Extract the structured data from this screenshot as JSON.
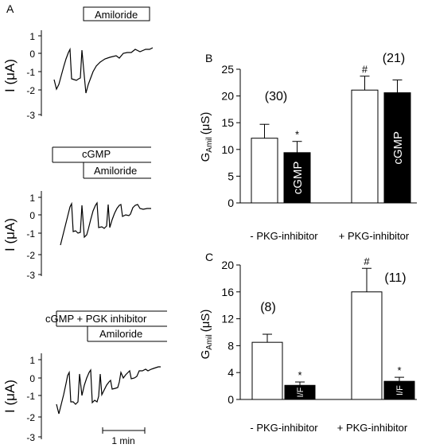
{
  "panels": {
    "A": "A",
    "B": "B",
    "C": "C"
  },
  "traces": [
    {
      "bars": [
        "Amiloride"
      ],
      "ylabel": "I (μA)",
      "yticks": [
        "1",
        "0",
        "-1",
        "-2",
        "-3"
      ]
    },
    {
      "bars": [
        "cGMP",
        "Amiloride"
      ],
      "ylabel": "I (μA)",
      "yticks": [
        "1",
        "0",
        "-1",
        "-2",
        "-3"
      ]
    },
    {
      "bars": [
        "cGMP + PGK inhibitor",
        "Amiloride"
      ],
      "ylabel": "I (μA)",
      "yticks": [
        "1",
        "0",
        "-1",
        "-2",
        "-3"
      ],
      "scalebar": "1 min"
    }
  ],
  "chart_data": [
    {
      "type": "bar",
      "panel": "B",
      "ylabel_main": "G",
      "ylabel_sub": "Amil",
      "ylabel_unit": "(μS)",
      "ylim": [
        0,
        25
      ],
      "yticks": [
        "0",
        "5",
        "10",
        "15",
        "20",
        "25"
      ],
      "groups": [
        {
          "label": "- PKG-inhibitor",
          "n": "(30)",
          "bars": [
            {
              "value": 12.1,
              "err": 2.6,
              "fill": "#ffffff",
              "text": "",
              "mark": ""
            },
            {
              "value": 9.4,
              "err": 2.1,
              "fill": "#000000",
              "text": "cGMP",
              "mark": "*"
            }
          ]
        },
        {
          "label": "+ PKG-inhibitor",
          "n": "(21)",
          "bars": [
            {
              "value": 21.1,
              "err": 2.6,
              "fill": "#ffffff",
              "text": "",
              "mark": "#"
            },
            {
              "value": 20.6,
              "err": 2.4,
              "fill": "#000000",
              "text": "cGMP",
              "mark": ""
            }
          ]
        }
      ]
    },
    {
      "type": "bar",
      "panel": "C",
      "ylabel_main": "G",
      "ylabel_sub": "Amil",
      "ylabel_unit": "(μS)",
      "ylim": [
        0,
        20
      ],
      "yticks": [
        "0",
        "4",
        "8",
        "12",
        "16",
        "20"
      ],
      "groups": [
        {
          "label": "- PKG-inhibitor",
          "n": "(8)",
          "bars": [
            {
              "value": 8.5,
              "err": 1.2,
              "fill": "#ffffff",
              "text": "",
              "mark": ""
            },
            {
              "value": 2.1,
              "err": 0.5,
              "fill": "#000000",
              "text": "I/F",
              "mark": "*"
            }
          ]
        },
        {
          "label": "+ PKG-inhibitor",
          "n": "(11)",
          "bars": [
            {
              "value": 16.0,
              "err": 3.5,
              "fill": "#ffffff",
              "text": "",
              "mark": "#"
            },
            {
              "value": 2.7,
              "err": 0.6,
              "fill": "#000000",
              "text": "I/F",
              "mark": "*"
            }
          ]
        }
      ]
    }
  ]
}
